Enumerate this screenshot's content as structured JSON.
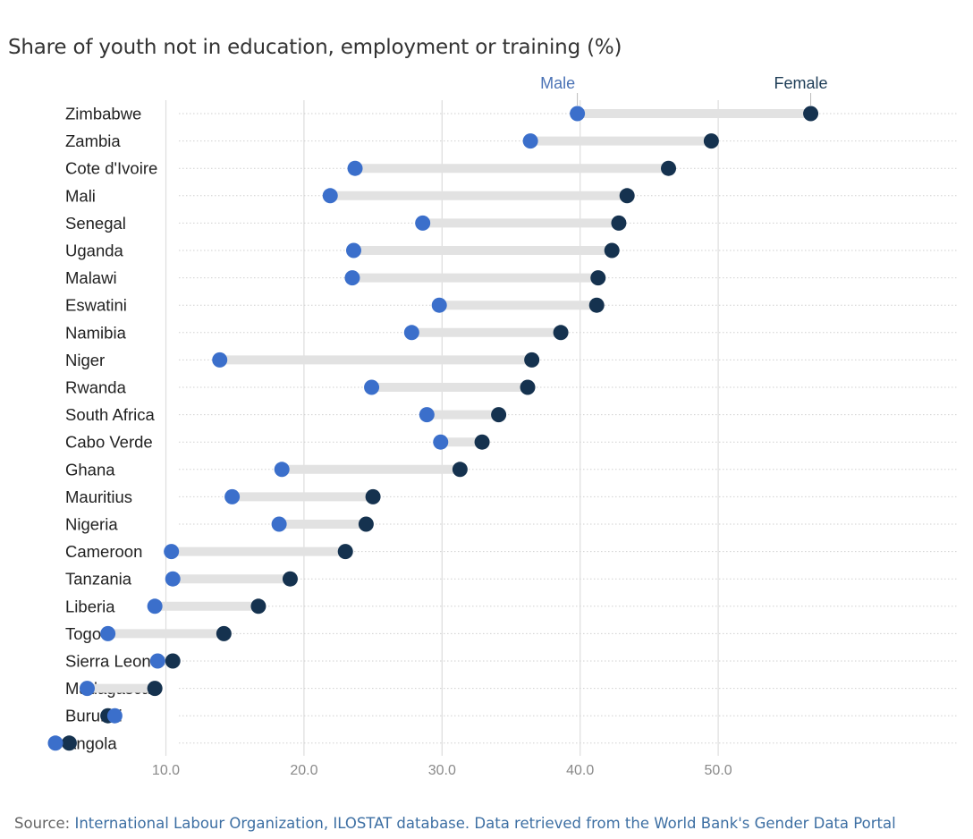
{
  "chart_data": {
    "type": "dumbbell",
    "title": "Share of youth not in education, employment or training (%)",
    "xlabel": "",
    "ylabel": "",
    "xlim": [
      0,
      57
    ],
    "xticks": [
      "10.0",
      "20.0",
      "30.0",
      "40.0",
      "50.0"
    ],
    "grid": "vertical",
    "legend": "top-right",
    "categories": [
      "Zimbabwe",
      "Zambia",
      "Cote d'Ivoire",
      "Mali",
      "Senegal",
      "Uganda",
      "Malawi",
      "Eswatini",
      "Namibia",
      "Niger",
      "Rwanda",
      "South Africa",
      "Cabo Verde",
      "Ghana",
      "Mauritius",
      "Nigeria",
      "Cameroon",
      "Tanzania",
      "Liberia",
      "Togo",
      "Sierra Leone",
      "Madagascar",
      "Burundi",
      "Angola"
    ],
    "series": [
      {
        "name": "Male",
        "color": "#3b6fcb",
        "values": [
          39.8,
          36.4,
          23.7,
          21.9,
          28.6,
          23.6,
          23.5,
          29.8,
          27.8,
          13.9,
          24.9,
          28.9,
          29.9,
          18.4,
          14.8,
          18.2,
          10.4,
          10.5,
          9.2,
          5.8,
          9.4,
          4.3,
          6.3,
          2.0
        ]
      },
      {
        "name": "Female",
        "color": "#15324f",
        "values": [
          56.7,
          49.5,
          46.4,
          43.4,
          42.8,
          42.3,
          41.3,
          41.2,
          38.6,
          36.5,
          36.2,
          34.1,
          32.9,
          31.3,
          25.0,
          24.5,
          23.0,
          19.0,
          16.7,
          14.2,
          10.5,
          9.2,
          5.8,
          3.0
        ]
      }
    ]
  },
  "source": {
    "prefix": "Source: ",
    "text": "International Labour Organization, ILOSTAT database. Data retrieved from the World Bank's Gender Data Portal"
  }
}
